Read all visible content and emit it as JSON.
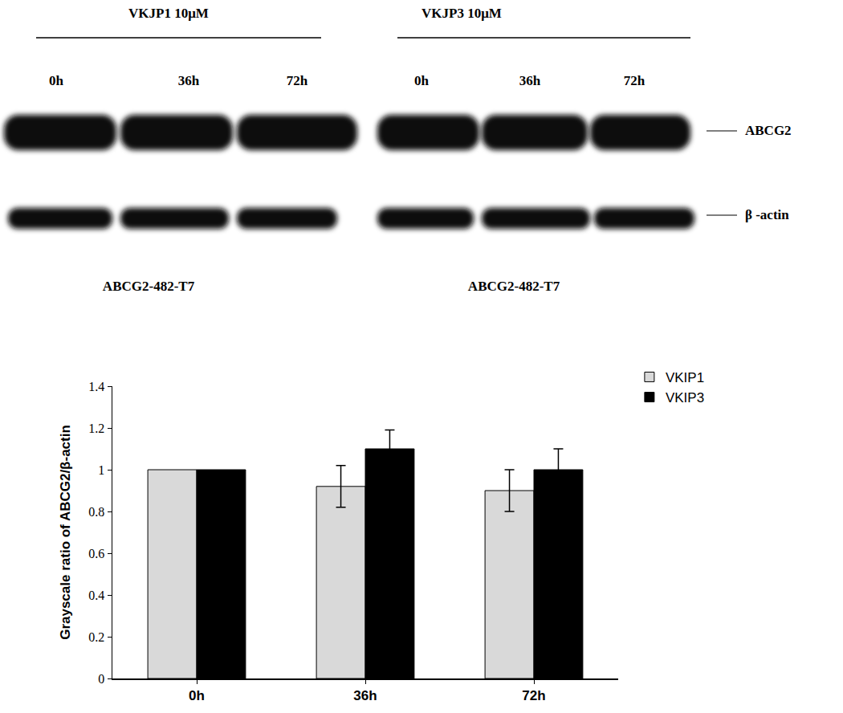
{
  "blot": {
    "panels": [
      {
        "treatment": "VKJP1 10μM",
        "times": [
          "0h",
          "36h",
          "72h"
        ],
        "cell_line": "ABCG2-482-T7"
      },
      {
        "treatment": "VKJP3 10μM",
        "times": [
          "0h",
          "36h",
          "72h"
        ],
        "cell_line": "ABCG2-482-T7"
      }
    ],
    "bands": [
      "ABCG2",
      "β -actin"
    ]
  },
  "chart_data": {
    "type": "bar",
    "categories": [
      "0h",
      "36h",
      "72h"
    ],
    "y_label": "Grayscale ratio of ABCG2/β-actin",
    "series": [
      {
        "name": "VKIP1",
        "color": "#d9d9d9",
        "values": [
          1.0,
          0.92,
          0.9
        ],
        "errors": [
          null,
          0.1,
          0.1
        ]
      },
      {
        "name": "VKIP3",
        "color": "#000000",
        "values": [
          1.0,
          1.1,
          1.0
        ],
        "errors": [
          null,
          0.09,
          0.1
        ]
      }
    ],
    "ylim": [
      0,
      1.4
    ],
    "yticks": [
      0,
      0.2,
      0.4,
      0.6,
      0.8,
      1,
      1.2,
      1.4
    ],
    "grid": false,
    "legend": "upper right"
  }
}
